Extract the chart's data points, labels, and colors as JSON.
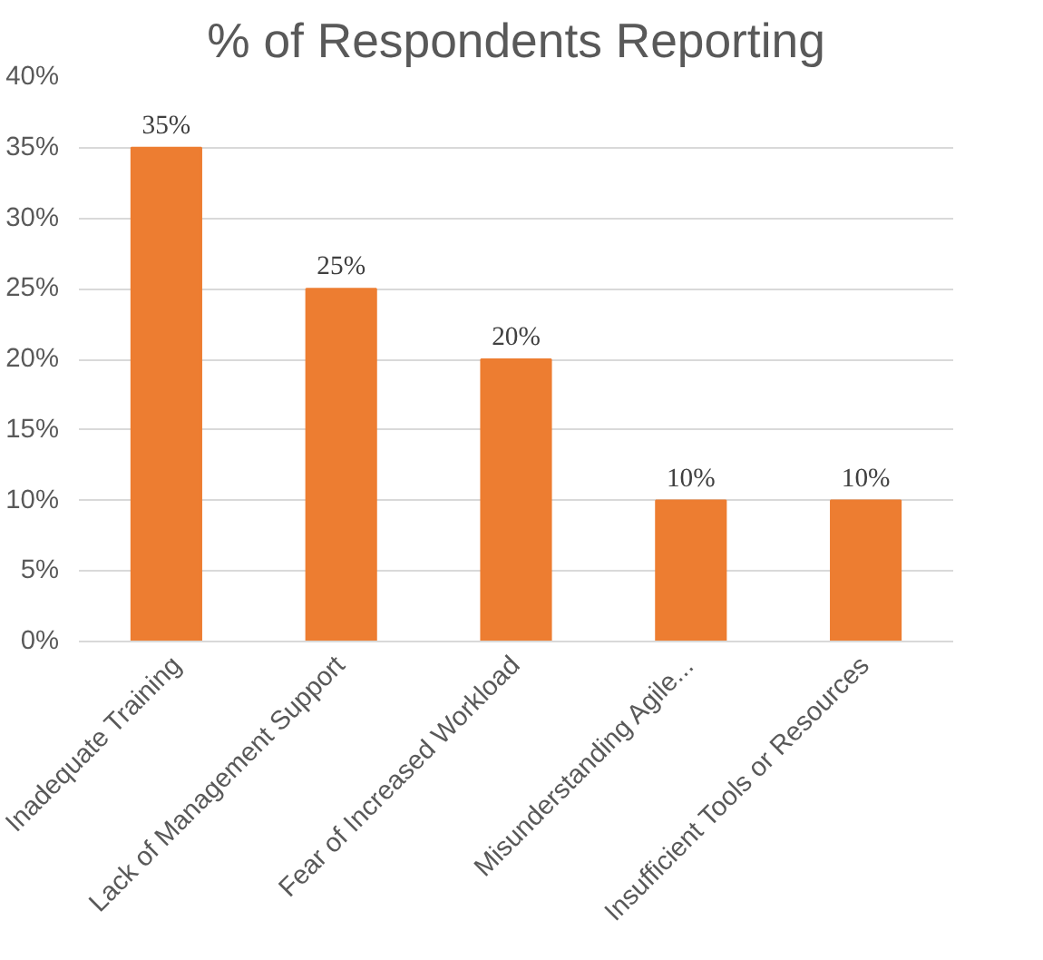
{
  "chart_data": {
    "type": "bar",
    "title": "% of Respondents Reporting",
    "categories": [
      "Inadequate Training",
      "Lack of Management Support",
      "Fear of Increased Workload",
      "Misunderstanding Agile...",
      "Insufficient Tools or Resources"
    ],
    "values": [
      35,
      25,
      20,
      10,
      10
    ],
    "value_labels": [
      "35%",
      "25%",
      "20%",
      "10%",
      "10%"
    ],
    "color": "#ed7d31",
    "ylim": [
      0,
      40
    ],
    "yticks": [
      {
        "value": 0,
        "label": "0%"
      },
      {
        "value": 5,
        "label": "5%"
      },
      {
        "value": 10,
        "label": "10%"
      },
      {
        "value": 15,
        "label": "15%"
      },
      {
        "value": 20,
        "label": "20%"
      },
      {
        "value": 25,
        "label": "25%"
      },
      {
        "value": 30,
        "label": "30%"
      },
      {
        "value": 35,
        "label": "35%"
      },
      {
        "value": 40,
        "label": "40%"
      }
    ],
    "grid": "y"
  }
}
